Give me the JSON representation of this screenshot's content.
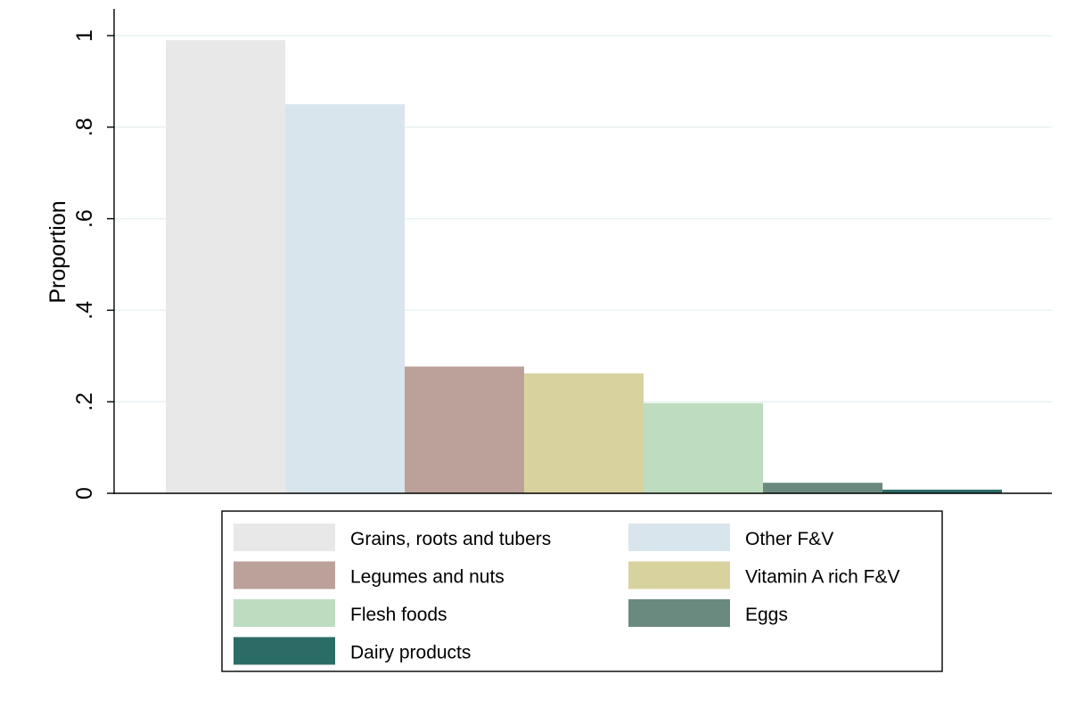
{
  "chart_data": {
    "type": "bar",
    "title": "",
    "xlabel": "",
    "ylabel": "Proportion",
    "ylim": [
      0,
      1.05
    ],
    "yticks": [
      {
        "value": 0,
        "label": "0"
      },
      {
        "value": 0.2,
        "label": ".2"
      },
      {
        "value": 0.4,
        "label": ".4"
      },
      {
        "value": 0.6,
        "label": ".6"
      },
      {
        "value": 0.8,
        "label": ".8"
      },
      {
        "value": 1,
        "label": "1"
      }
    ],
    "grid": true,
    "legend_position": "bottom",
    "categories": [
      "Grains, roots and tubers",
      "Other F&V",
      "Legumes and nuts",
      "Vitamin A rich F&V",
      "Flesh foods",
      "Eggs",
      "Dairy products"
    ],
    "values": [
      0.99,
      0.85,
      0.277,
      0.262,
      0.197,
      0.023,
      0.008
    ],
    "colors": [
      "#e8e8e8",
      "#d9e5ec",
      "#bca19b",
      "#d8d29e",
      "#bedcbf",
      "#6b8a7f",
      "#2c6c66"
    ]
  }
}
